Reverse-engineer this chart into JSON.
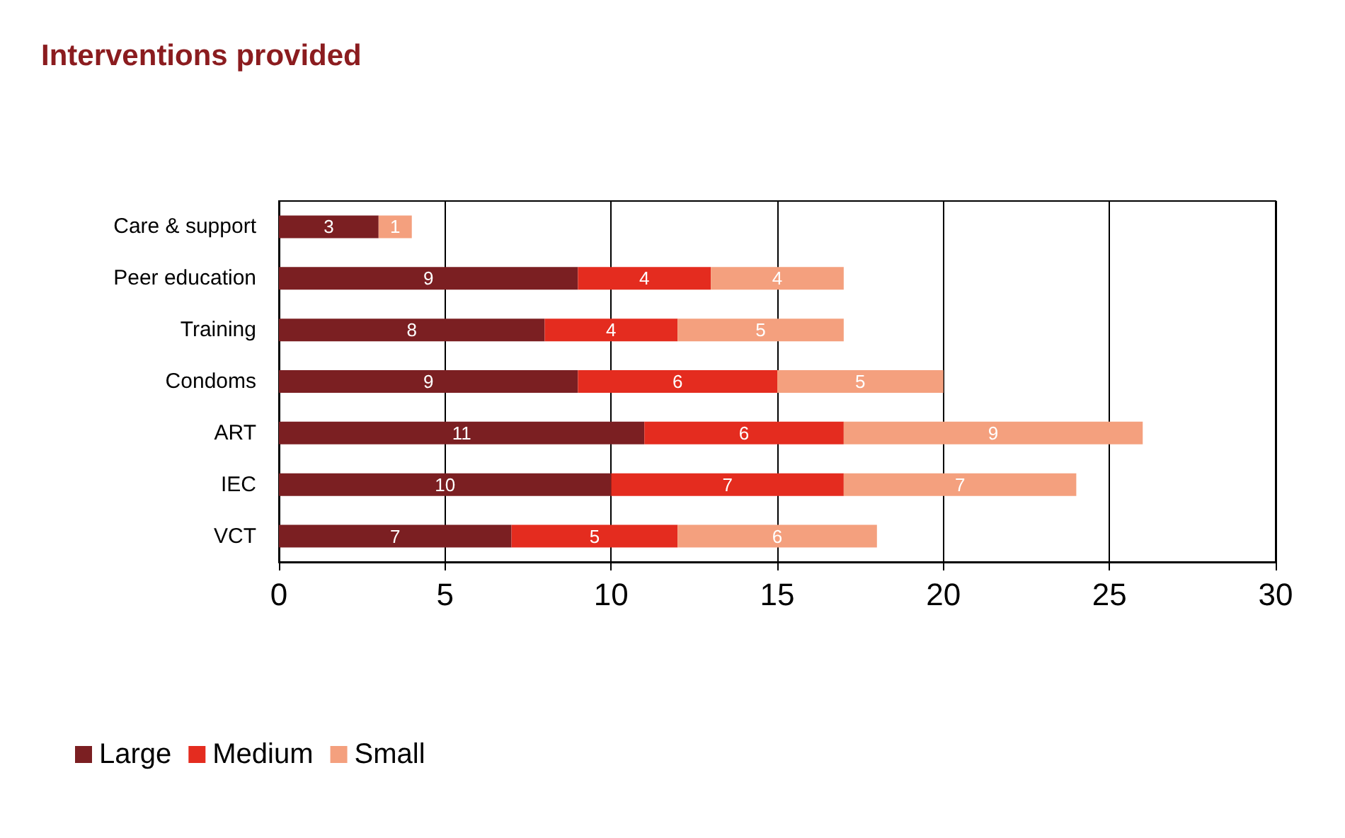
{
  "chart_data": {
    "type": "bar",
    "title": "Interventions provided",
    "orientation": "horizontal",
    "stacked": true,
    "categories": [
      "Care & support",
      "Peer education",
      "Training",
      "Condoms",
      "ART",
      "IEC",
      "VCT"
    ],
    "series": [
      {
        "name": "Large",
        "color": "#7b1f22",
        "values": [
          3,
          9,
          8,
          9,
          11,
          10,
          7
        ]
      },
      {
        "name": "Medium",
        "color": "#e42c1f",
        "values": [
          null,
          4,
          4,
          6,
          6,
          7,
          5
        ]
      },
      {
        "name": "Small",
        "color": "#f4a07e",
        "values": [
          1,
          4,
          5,
          5,
          9,
          7,
          6
        ]
      }
    ],
    "xlim": [
      0,
      30
    ],
    "xticks": [
      0,
      5,
      10,
      15,
      20,
      25,
      30
    ],
    "grid": "x",
    "legend": "bottom left",
    "data_labels": true
  }
}
